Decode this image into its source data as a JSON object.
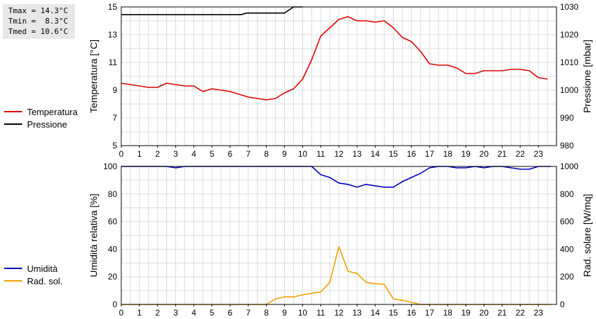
{
  "stats": {
    "tmax": "Tmax = 14.3°C",
    "tmin": "Tmin =  8.3°C",
    "tmed": "Tmed = 10.6°C"
  },
  "colors": {
    "temperature": "#dd0000",
    "pressure": "#000000",
    "humidity": "#0000bb",
    "radiation": "#f0a000",
    "grid": "#dcdcdc"
  },
  "chart_data": [
    {
      "type": "line",
      "ylabel_left": "Temperatura [°C]",
      "ylabel_right": "Pressione [mbar]",
      "x_ticks": [
        0,
        1,
        2,
        3,
        4,
        5,
        6,
        7,
        8,
        9,
        10,
        11,
        12,
        13,
        14,
        15,
        16,
        17,
        18,
        19,
        20,
        21,
        22,
        23
      ],
      "xlim": [
        0,
        24
      ],
      "ylim_left": [
        5,
        15
      ],
      "ylim_right": [
        980,
        1030
      ],
      "yticks_left": [
        5,
        7,
        9,
        11,
        13,
        15
      ],
      "yticks_right": [
        980,
        990,
        1000,
        1010,
        1020,
        1030
      ],
      "grid": true,
      "legend_position": "left",
      "series": [
        {
          "name": "Temperatura",
          "axis": "left",
          "x": [
            0,
            0.5,
            1,
            1.5,
            2,
            2.5,
            3,
            3.5,
            4,
            4.5,
            5,
            5.5,
            6,
            6.5,
            7,
            7.5,
            8,
            8.5,
            9,
            9.5,
            10,
            10.5,
            11,
            11.5,
            12,
            12.5,
            13,
            13.5,
            14,
            14.5,
            15,
            15.5,
            16,
            16.5,
            17,
            17.5,
            18,
            18.5,
            19,
            19.5,
            20,
            20.5,
            21,
            21.5,
            22,
            22.5,
            23,
            23.5
          ],
          "values": [
            9.5,
            9.4,
            9.3,
            9.2,
            9.2,
            9.5,
            9.4,
            9.3,
            9.3,
            8.9,
            9.1,
            9.0,
            8.9,
            8.7,
            8.5,
            8.4,
            8.3,
            8.4,
            8.8,
            9.1,
            9.8,
            11.2,
            12.9,
            13.5,
            14.1,
            14.3,
            14.0,
            14.0,
            13.9,
            14.0,
            13.5,
            12.8,
            12.5,
            11.8,
            10.9,
            10.8,
            10.8,
            10.6,
            10.2,
            10.2,
            10.4,
            10.4,
            10.4,
            10.5,
            10.5,
            10.4,
            9.9,
            9.8
          ]
        },
        {
          "name": "Pressione",
          "axis": "right",
          "x": [
            0,
            6.6,
            6.9,
            8,
            9,
            9.5,
            10
          ],
          "values": [
            1027.2,
            1027.2,
            1027.8,
            1027.8,
            1027.8,
            1030.0,
            1030.0
          ]
        }
      ]
    },
    {
      "type": "line",
      "ylabel_left": "Umidità relativa [%]",
      "ylabel_right": "Rad. solare [W/mq]",
      "x_ticks": [
        0,
        1,
        2,
        3,
        4,
        5,
        6,
        7,
        8,
        9,
        10,
        11,
        12,
        13,
        14,
        15,
        16,
        17,
        18,
        19,
        20,
        21,
        22,
        23
      ],
      "xlim": [
        0,
        24
      ],
      "ylim_left": [
        0,
        100
      ],
      "ylim_right": [
        0,
        1000
      ],
      "yticks_left": [
        0,
        20,
        40,
        60,
        80,
        100
      ],
      "yticks_right": [
        0,
        200,
        400,
        600,
        800,
        1000
      ],
      "grid": true,
      "legend_position": "left",
      "series": [
        {
          "name": "Umidità",
          "axis": "left",
          "x": [
            0,
            2.5,
            3,
            3.5,
            4,
            10.5,
            11,
            11.5,
            12,
            12.5,
            13,
            13.5,
            14,
            14.5,
            15,
            15.5,
            16,
            16.5,
            17,
            17.5,
            18,
            18.5,
            19,
            19.5,
            20,
            20.5,
            21,
            21.5,
            22,
            22.5,
            23,
            23.7
          ],
          "values": [
            100,
            100,
            99,
            100,
            100,
            100,
            94,
            92,
            88,
            87,
            85,
            87,
            86,
            85,
            85,
            89,
            92,
            95,
            99,
            100,
            100,
            99,
            99,
            100,
            99,
            100,
            100,
            99,
            98,
            98,
            100,
            100
          ]
        },
        {
          "name": "Rad. sol.",
          "axis": "right",
          "x": [
            0,
            8,
            8.5,
            9,
            9.5,
            10,
            10.5,
            11,
            11.5,
            12,
            12.5,
            13,
            13.5,
            14,
            14.5,
            15,
            15.5,
            16,
            16.5,
            17,
            23.7
          ],
          "values": [
            0,
            0,
            40,
            55,
            55,
            70,
            80,
            90,
            160,
            420,
            240,
            225,
            160,
            150,
            145,
            40,
            30,
            15,
            0,
            0,
            0
          ]
        }
      ]
    }
  ]
}
